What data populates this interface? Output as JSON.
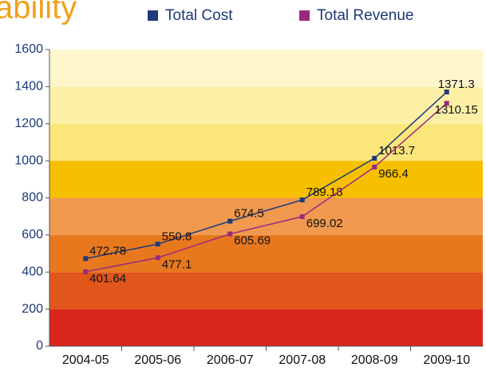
{
  "chart_data": {
    "type": "line",
    "title": "ability",
    "categories": [
      "2004-05",
      "2005-06",
      "2006-07",
      "2007-08",
      "2008-09",
      "2009-10"
    ],
    "series": [
      {
        "name": "Total Cost",
        "color": "#1f3a7a",
        "values": [
          472.78,
          550.8,
          674.5,
          789.18,
          1013.7,
          1371.3
        ]
      },
      {
        "name": "Total Revenue",
        "color": "#9b2a7e",
        "values": [
          401.64,
          477.1,
          605.69,
          699.02,
          966.4,
          1310.15
        ]
      }
    ],
    "ylim": [
      0,
      1600
    ],
    "yticks": [
      0,
      200,
      400,
      600,
      800,
      1000,
      1200,
      1400,
      1600
    ],
    "band_colors": [
      "#d9261c",
      "#e0561b",
      "#e8781e",
      "#f0994f",
      "#f6c000",
      "#fbe67a",
      "#fdf0a6",
      "#fef7cc"
    ],
    "legend": "top"
  }
}
